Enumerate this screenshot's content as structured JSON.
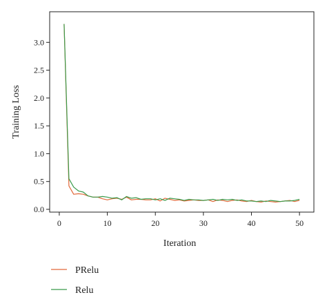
{
  "chart_data": {
    "type": "line",
    "title": "",
    "xlabel": "Iteration",
    "ylabel": "Training Loss",
    "xlim": [
      -2,
      53
    ],
    "ylim": [
      -0.05,
      3.55
    ],
    "x_ticks": [
      0,
      10,
      20,
      30,
      40,
      50
    ],
    "y_ticks": [
      0.0,
      0.5,
      1.0,
      1.5,
      2.0,
      2.5,
      3.0
    ],
    "y_tick_labels": [
      "0.0",
      "0.5",
      "1.0",
      "1.5",
      "2.0",
      "2.5",
      "3.0"
    ],
    "grid": false,
    "legend_position": "bottom-left",
    "x": [
      1,
      2,
      3,
      4,
      5,
      6,
      7,
      8,
      9,
      10,
      11,
      12,
      13,
      14,
      15,
      16,
      17,
      18,
      19,
      20,
      21,
      22,
      23,
      24,
      25,
      26,
      27,
      28,
      29,
      30,
      31,
      32,
      33,
      34,
      35,
      36,
      37,
      38,
      39,
      40,
      41,
      42,
      43,
      44,
      45,
      46,
      47,
      48,
      49,
      50
    ],
    "series": [
      {
        "name": "PRelu",
        "color": "#e2693a",
        "values": [
          3.33,
          0.42,
          0.27,
          0.28,
          0.27,
          0.24,
          0.22,
          0.22,
          0.19,
          0.17,
          0.19,
          0.2,
          0.18,
          0.22,
          0.17,
          0.18,
          0.18,
          0.17,
          0.17,
          0.19,
          0.15,
          0.2,
          0.18,
          0.16,
          0.17,
          0.15,
          0.16,
          0.17,
          0.16,
          0.16,
          0.17,
          0.14,
          0.17,
          0.16,
          0.14,
          0.16,
          0.17,
          0.15,
          0.14,
          0.16,
          0.14,
          0.13,
          0.15,
          0.14,
          0.13,
          0.14,
          0.15,
          0.16,
          0.14,
          0.16
        ]
      },
      {
        "name": "Relu",
        "color": "#3a9a4a",
        "values": [
          3.33,
          0.55,
          0.4,
          0.33,
          0.31,
          0.24,
          0.22,
          0.22,
          0.23,
          0.22,
          0.2,
          0.21,
          0.17,
          0.23,
          0.2,
          0.21,
          0.18,
          0.19,
          0.19,
          0.17,
          0.19,
          0.16,
          0.2,
          0.19,
          0.18,
          0.16,
          0.18,
          0.17,
          0.17,
          0.16,
          0.17,
          0.18,
          0.16,
          0.18,
          0.17,
          0.18,
          0.16,
          0.17,
          0.15,
          0.15,
          0.14,
          0.15,
          0.14,
          0.16,
          0.15,
          0.14,
          0.15,
          0.15,
          0.16,
          0.18
        ]
      }
    ]
  }
}
